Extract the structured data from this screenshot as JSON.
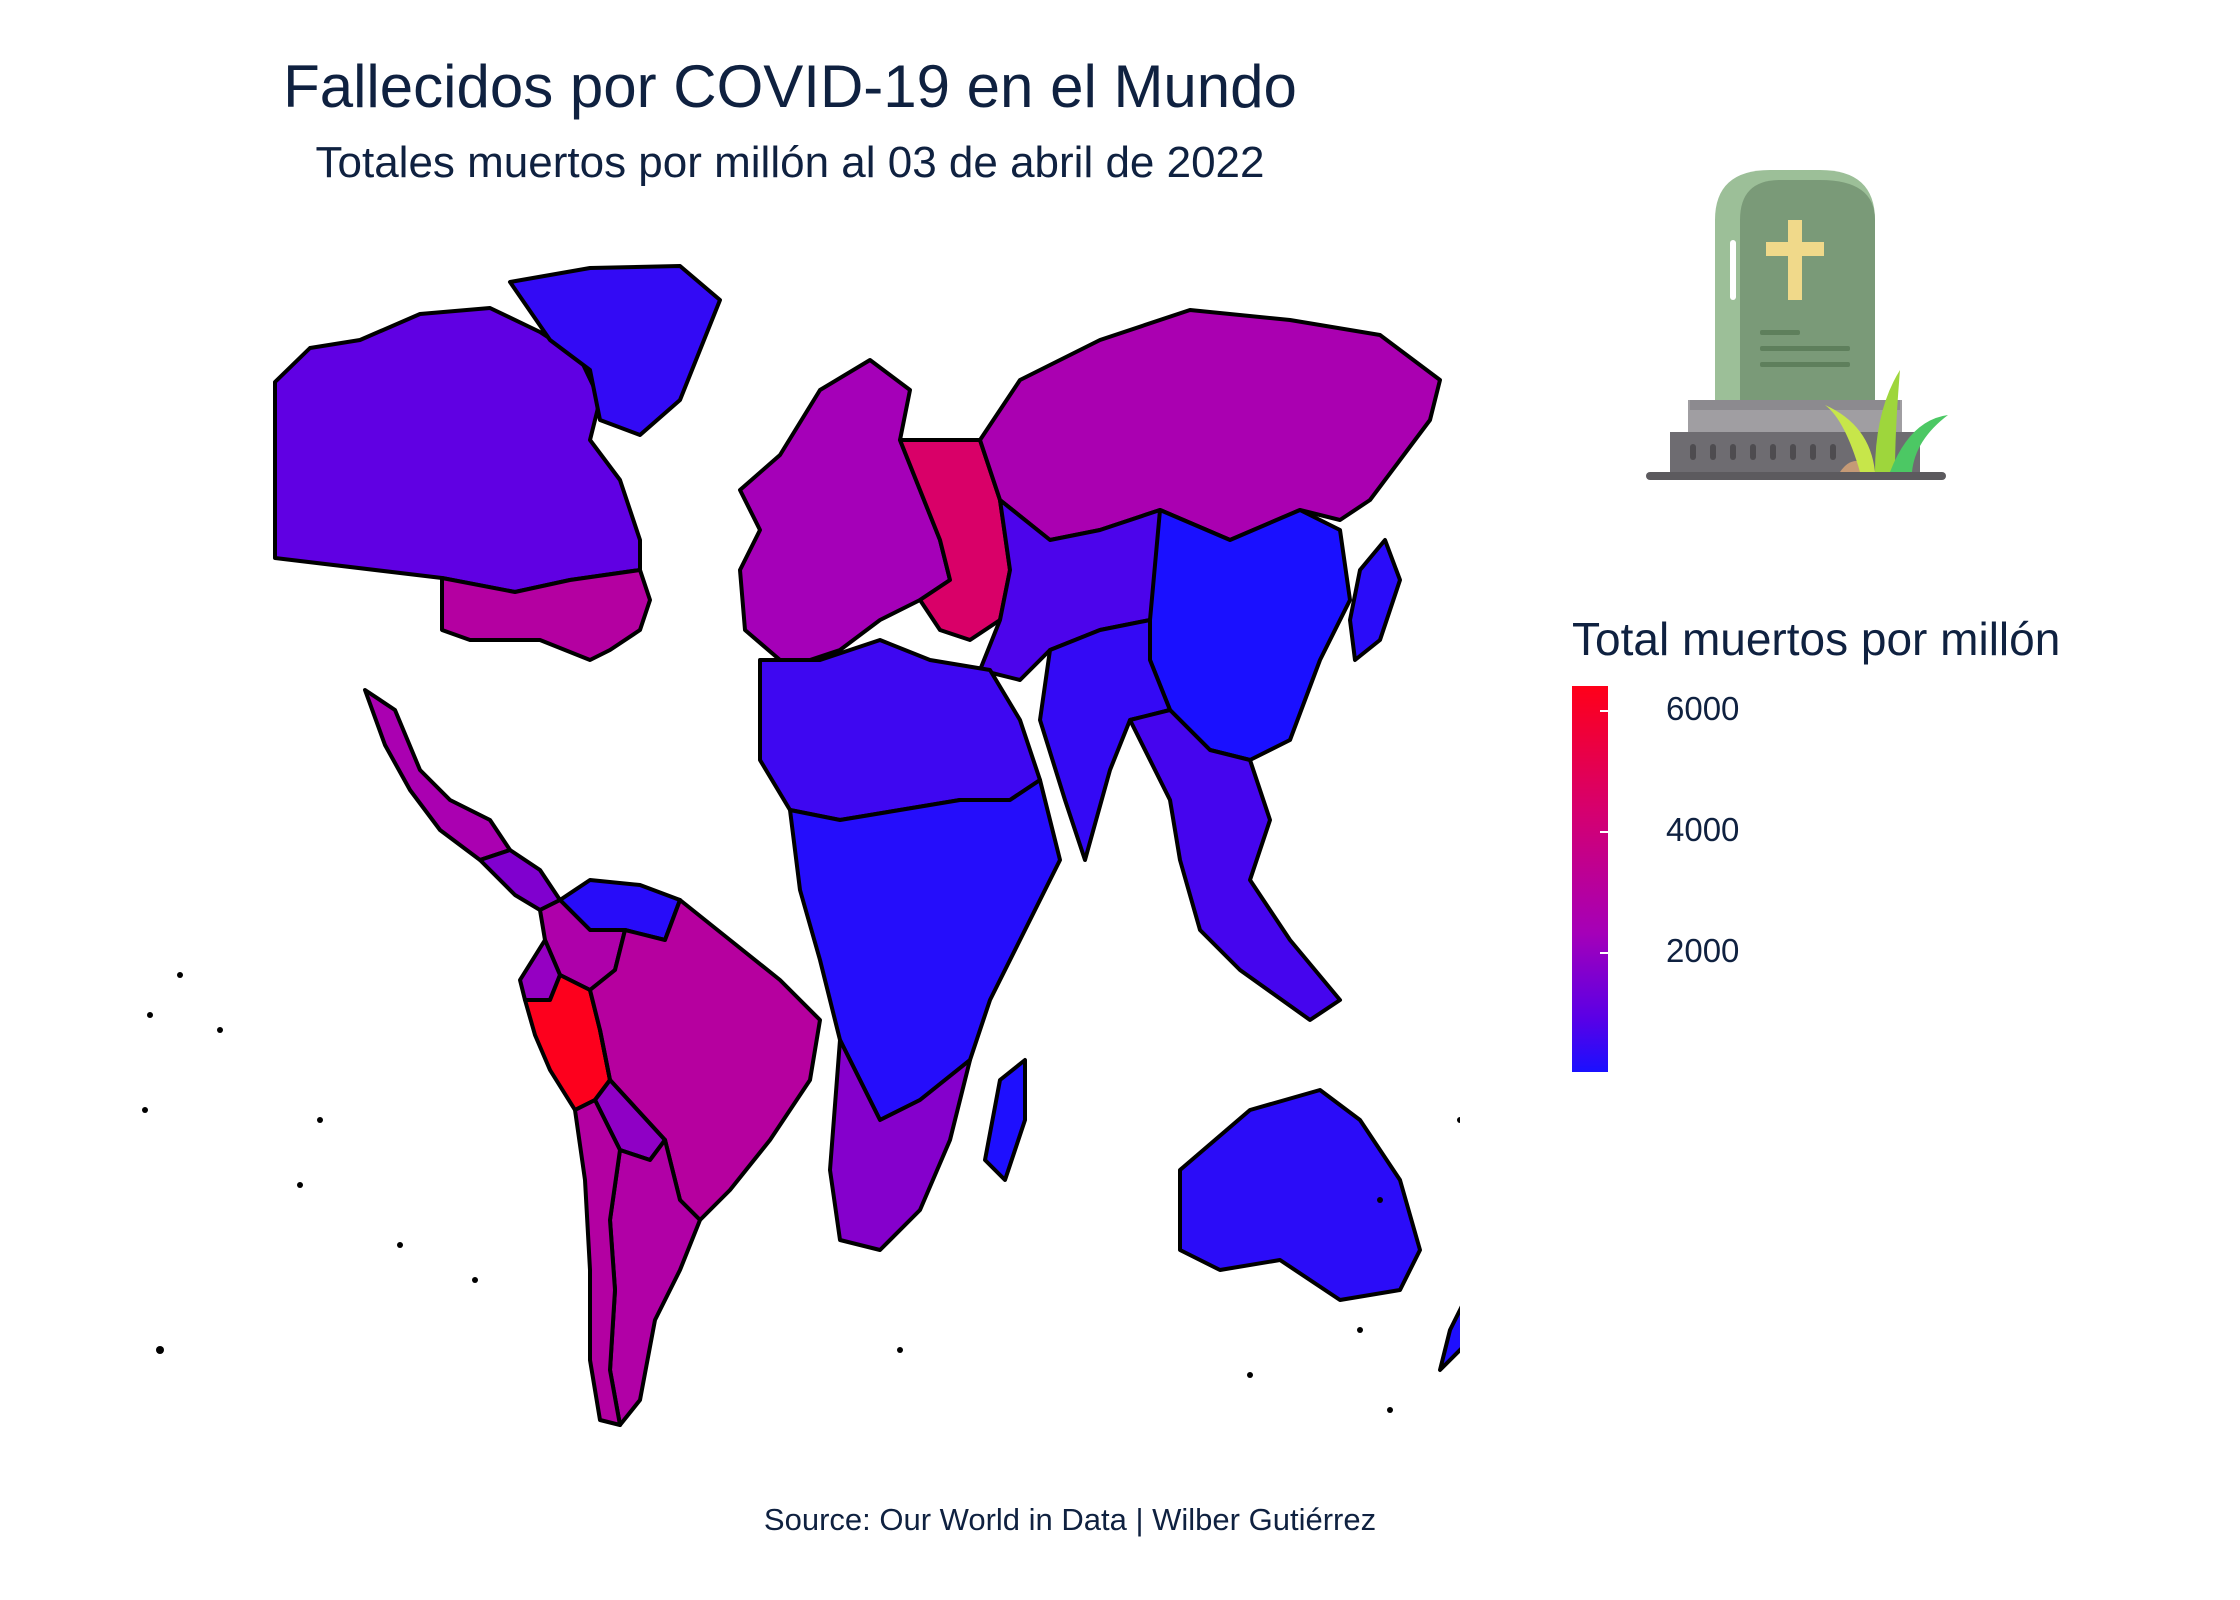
{
  "header": {
    "title": "Fallecidos por COVID-19 en el Mundo",
    "subtitle": "Totales muertos por millón al 03 de abril de 2022"
  },
  "caption": "Source: Our World in Data | Wilber Gutiérrez",
  "legend": {
    "title": "Total muertos por millón",
    "ticks": [
      "6000",
      "4000",
      "2000"
    ],
    "tick_values": [
      6000,
      4000,
      2000
    ],
    "range": [
      0,
      6400
    ],
    "colors": {
      "low": "#1a10ff",
      "mid": "#a500b8",
      "high": "#ff0019"
    }
  },
  "map": {
    "projection": "world choropleth",
    "border_color": "#000000",
    "regions": [
      {
        "name": "Canada",
        "value": 1000
      },
      {
        "name": "Greenland",
        "value": 350
      },
      {
        "name": "United States",
        "value": 2950
      },
      {
        "name": "Mexico",
        "value": 2500
      },
      {
        "name": "Central America",
        "value": 1600
      },
      {
        "name": "Colombia",
        "value": 2700
      },
      {
        "name": "Venezuela",
        "value": 200
      },
      {
        "name": "Ecuador",
        "value": 2000
      },
      {
        "name": "Peru",
        "value": 6300
      },
      {
        "name": "Brazil",
        "value": 3000
      },
      {
        "name": "Bolivia",
        "value": 1900
      },
      {
        "name": "Argentina",
        "value": 2800
      },
      {
        "name": "Chile",
        "value": 2900
      },
      {
        "name": "Russia",
        "value": 2500
      },
      {
        "name": "Western Europe",
        "value": 2300
      },
      {
        "name": "Eastern Europe",
        "value": 4500
      },
      {
        "name": "Central Asia",
        "value": 700
      },
      {
        "name": "China",
        "value": 3
      },
      {
        "name": "India",
        "value": 370
      },
      {
        "name": "Southeast Asia",
        "value": 600
      },
      {
        "name": "North Africa",
        "value": 500
      },
      {
        "name": "Sub-Saharan Africa",
        "value": 150
      },
      {
        "name": "South Africa",
        "value": 1700
      },
      {
        "name": "Madagascar",
        "value": 50
      },
      {
        "name": "Australia",
        "value": 240
      },
      {
        "name": "New Zealand",
        "value": 50
      },
      {
        "name": "Japan",
        "value": 230
      }
    ]
  },
  "icon": "tombstone-icon"
}
